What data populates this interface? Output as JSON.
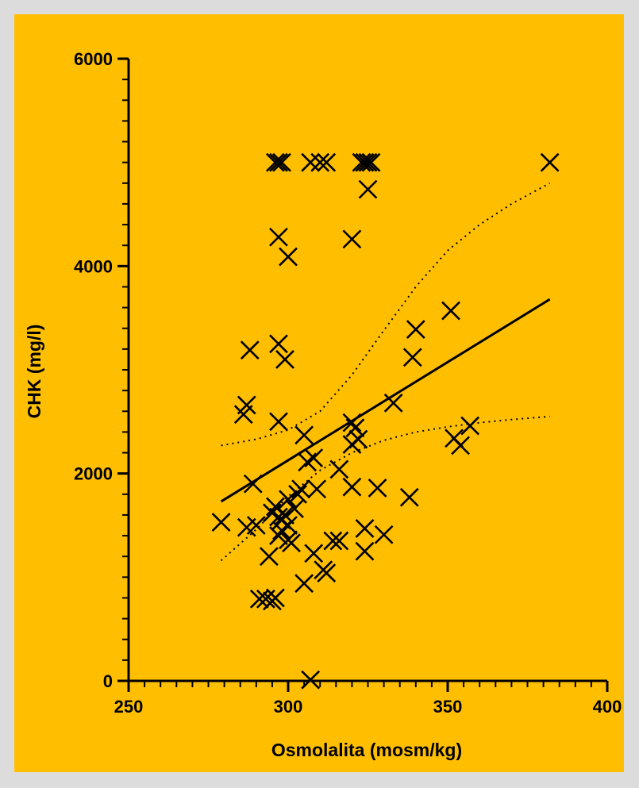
{
  "chart_data": {
    "type": "scatter",
    "title": "",
    "xlabel": "Osmolalita (mosm/kg)",
    "ylabel": "CHK (mg/l)",
    "xlim": [
      250,
      400
    ],
    "ylim": [
      0,
      6000
    ],
    "x_ticks": [
      250,
      300,
      350,
      400
    ],
    "y_ticks": [
      0,
      2000,
      4000,
      6000
    ],
    "x_tick_labels": [
      "250",
      "300",
      "350",
      "400"
    ],
    "y_tick_labels": [
      "0",
      "2000",
      "4000",
      "6000"
    ],
    "grid": false,
    "background_color": "#ffbf00",
    "frame_color": "#dcdcdc",
    "marker": "x",
    "points": [
      [
        279,
        1530
      ],
      [
        286,
        2570
      ],
      [
        287,
        2660
      ],
      [
        288,
        3190
      ],
      [
        287,
        1480
      ],
      [
        290,
        1500
      ],
      [
        289,
        1900
      ],
      [
        291,
        790
      ],
      [
        293,
        790
      ],
      [
        295,
        770
      ],
      [
        296,
        800
      ],
      [
        294,
        1200
      ],
      [
        295,
        1620
      ],
      [
        297,
        1580
      ],
      [
        296,
        1680
      ],
      [
        297,
        1400
      ],
      [
        298,
        1550
      ],
      [
        299,
        1600
      ],
      [
        298,
        1450
      ],
      [
        300,
        1500
      ],
      [
        300,
        1360
      ],
      [
        301,
        1330
      ],
      [
        302,
        1660
      ],
      [
        303,
        1800
      ],
      [
        304,
        1850
      ],
      [
        300,
        1750
      ],
      [
        297,
        2500
      ],
      [
        297,
        3250
      ],
      [
        297,
        4280
      ],
      [
        299,
        3100
      ],
      [
        300,
        4090
      ],
      [
        305,
        2370
      ],
      [
        306,
        2110
      ],
      [
        308,
        2150
      ],
      [
        305,
        940
      ],
      [
        308,
        1230
      ],
      [
        309,
        1850
      ],
      [
        311,
        1070
      ],
      [
        312,
        1040
      ],
      [
        314,
        1350
      ],
      [
        316,
        1350
      ],
      [
        316,
        2040
      ],
      [
        320,
        2490
      ],
      [
        321,
        2440
      ],
      [
        320,
        2280
      ],
      [
        322,
        2330
      ],
      [
        320,
        1870
      ],
      [
        324,
        1470
      ],
      [
        324,
        1250
      ],
      [
        328,
        1860
      ],
      [
        330,
        1410
      ],
      [
        333,
        2680
      ],
      [
        338,
        1770
      ],
      [
        339,
        3120
      ],
      [
        340,
        3390
      ],
      [
        351,
        3570
      ],
      [
        352,
        2340
      ],
      [
        354,
        2270
      ],
      [
        357,
        2460
      ],
      [
        382,
        5000
      ],
      [
        320,
        4260
      ],
      [
        325,
        4740
      ],
      [
        296,
        5000
      ],
      [
        297,
        5000
      ],
      [
        298,
        5000
      ],
      [
        307,
        5000
      ],
      [
        310,
        5000
      ],
      [
        312,
        5000
      ],
      [
        323,
        5000
      ],
      [
        324,
        5000
      ],
      [
        325,
        5000
      ],
      [
        326,
        5000
      ],
      [
        307,
        10
      ]
    ],
    "regression_line": [
      [
        279,
        1730
      ],
      [
        382,
        3680
      ]
    ],
    "confidence_band_upper": [
      [
        279,
        2270
      ],
      [
        290,
        2330
      ],
      [
        300,
        2420
      ],
      [
        310,
        2600
      ],
      [
        320,
        2950
      ],
      [
        330,
        3380
      ],
      [
        340,
        3800
      ],
      [
        350,
        4150
      ],
      [
        360,
        4400
      ],
      [
        370,
        4600
      ],
      [
        382,
        4800
      ]
    ],
    "confidence_band_lower": [
      [
        279,
        1160
      ],
      [
        290,
        1460
      ],
      [
        300,
        1780
      ],
      [
        310,
        2030
      ],
      [
        320,
        2200
      ],
      [
        330,
        2320
      ],
      [
        340,
        2400
      ],
      [
        350,
        2450
      ],
      [
        360,
        2490
      ],
      [
        370,
        2520
      ],
      [
        382,
        2550
      ]
    ]
  }
}
